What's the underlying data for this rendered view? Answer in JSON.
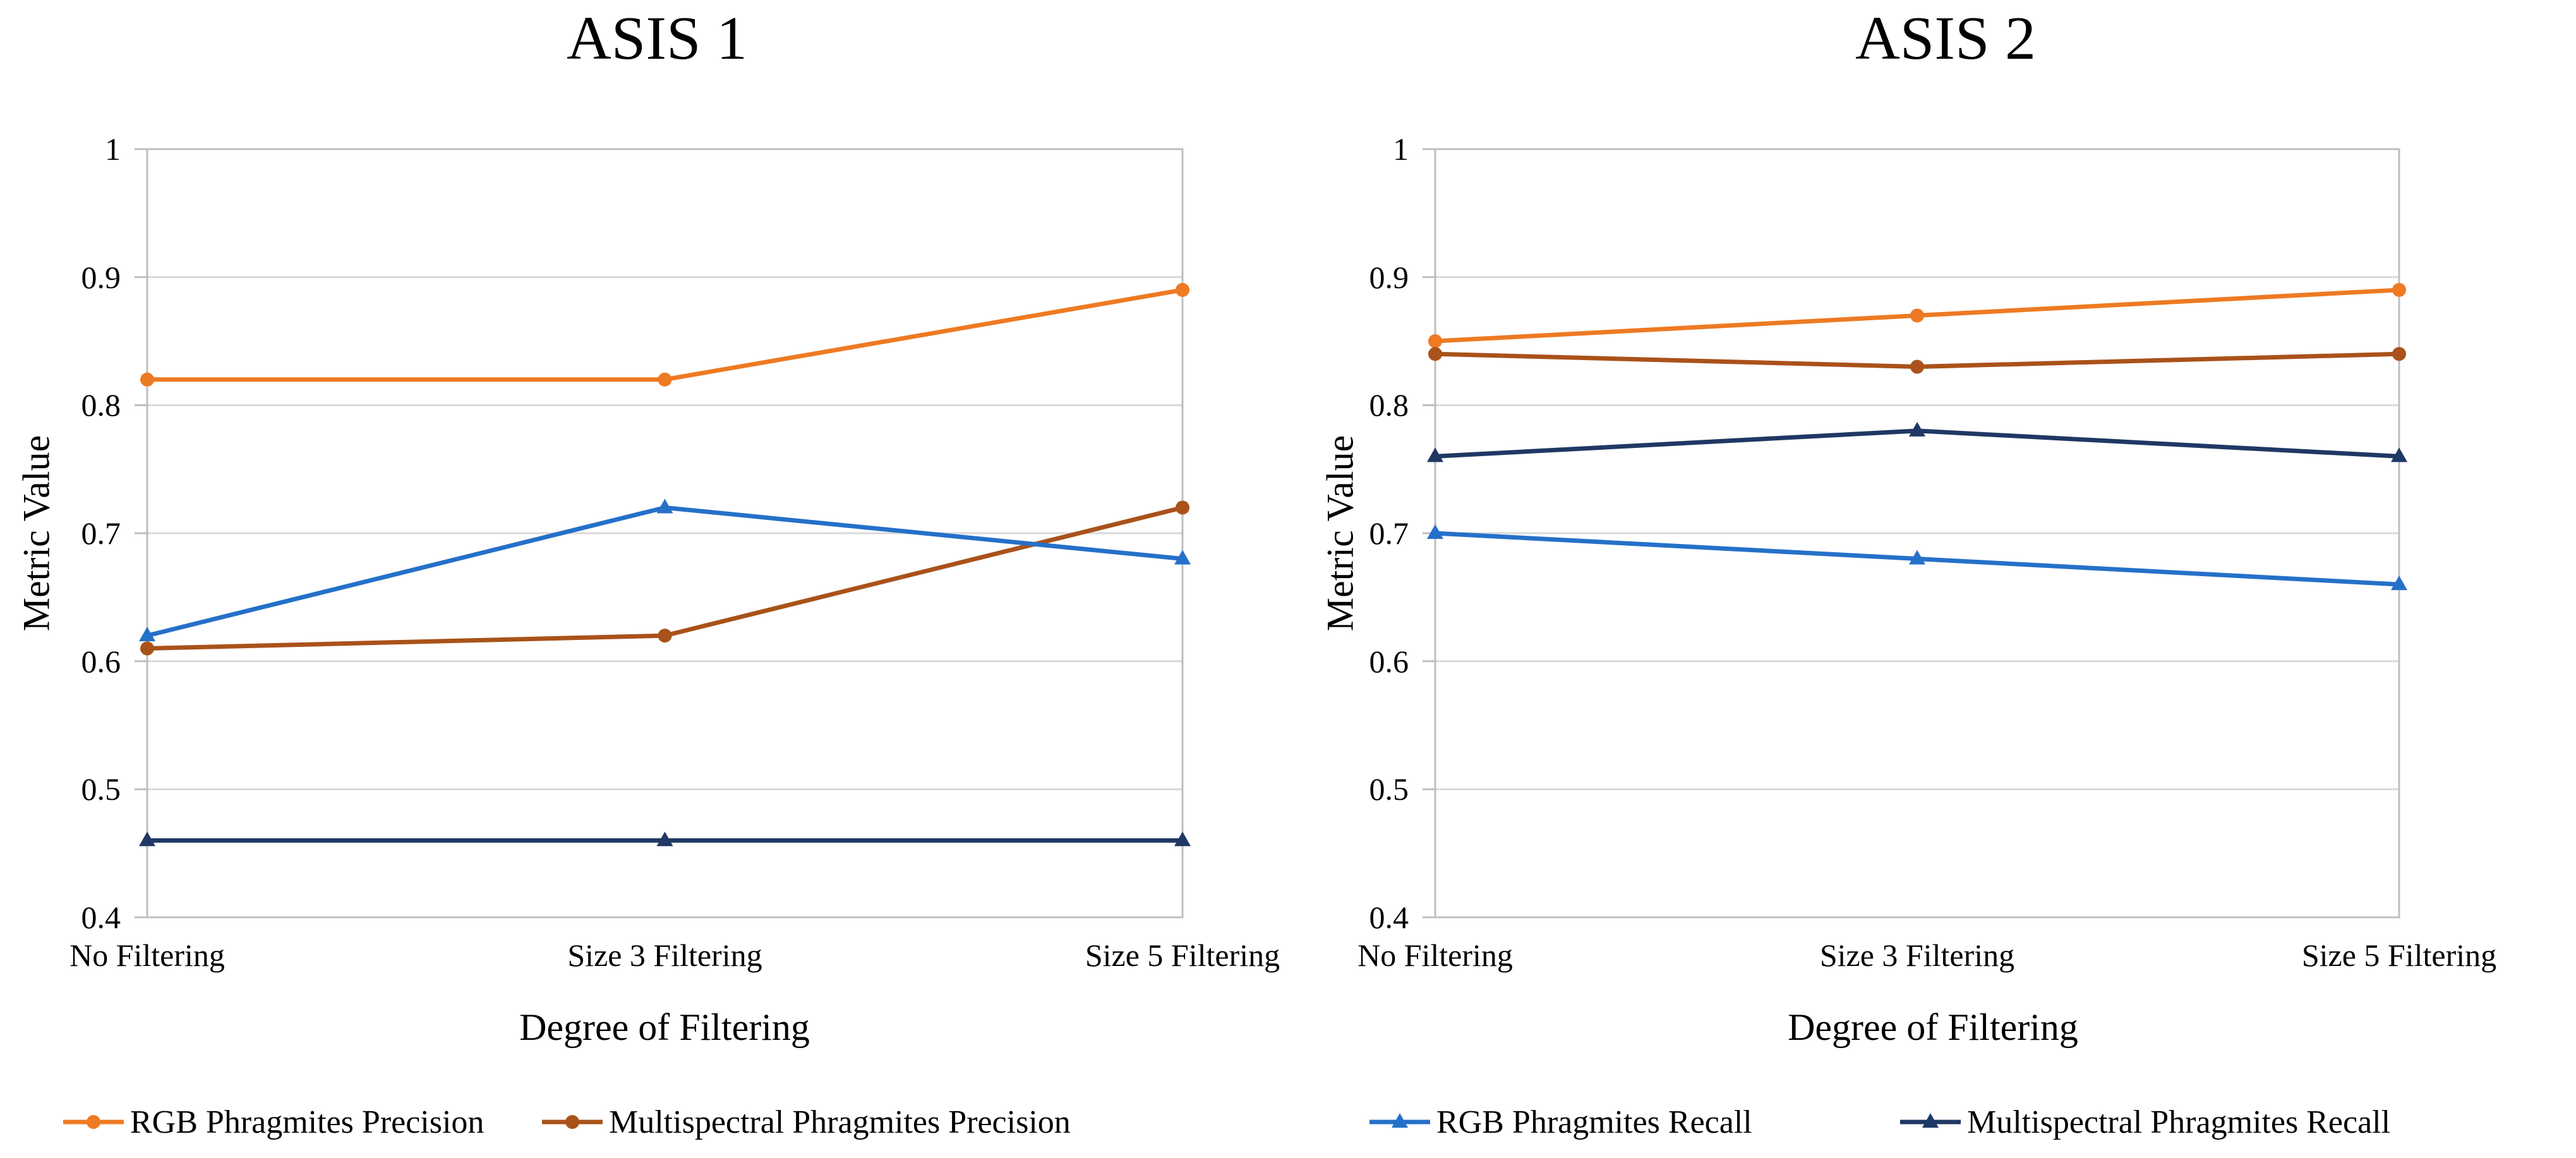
{
  "style": {
    "background": "#FFFFFF",
    "gridline_color": "#D9D9D9",
    "axis_color": "#BFBFBF",
    "text_color": "#000000"
  },
  "legend": {
    "items": [
      {
        "label": "RGB Phragmites Precision",
        "color": "#EE7A23",
        "marker": "circle"
      },
      {
        "label": "Multispectral Phragmites Precision",
        "color": "#A9521A",
        "marker": "circle"
      },
      {
        "label": "RGB Phragmites Recall",
        "color": "#2570C9",
        "marker": "triangle"
      },
      {
        "label": "Multispectral Phragmites Recall",
        "color": "#1F3864",
        "marker": "triangle"
      }
    ]
  },
  "chart_data": [
    {
      "type": "line",
      "title": "ASIS 1",
      "xlabel": "Degree of Filtering",
      "ylabel": "Metric Value",
      "categories": [
        "No Filtering",
        "Size 3 Filtering",
        "Size 5 Filtering"
      ],
      "ylim": [
        0.4,
        1
      ],
      "yticks": [
        1,
        0.9,
        0.8,
        0.7,
        0.6,
        0.5,
        0.4
      ],
      "ytick_labels": [
        "1",
        "0.9",
        "0.8",
        "0.7",
        "0.6",
        "0.5",
        "0.4"
      ],
      "grid": "horizontal",
      "legend_position": "bottom-shared",
      "series": [
        {
          "name": "RGB Phragmites Precision",
          "color": "#EE7A23",
          "marker": "circle",
          "values": [
            0.82,
            0.82,
            0.89
          ]
        },
        {
          "name": "Multispectral Phragmites Precision",
          "color": "#A9521A",
          "marker": "circle",
          "values": [
            0.61,
            0.62,
            0.72
          ]
        },
        {
          "name": "RGB Phragmites Recall",
          "color": "#2570C9",
          "marker": "triangle",
          "values": [
            0.62,
            0.72,
            0.68
          ]
        },
        {
          "name": "Multispectral Phragmites Recall",
          "color": "#1F3864",
          "marker": "triangle",
          "values": [
            0.46,
            0.46,
            0.46
          ]
        }
      ]
    },
    {
      "type": "line",
      "title": "ASIS 2",
      "xlabel": "Degree of Filtering",
      "ylabel": "Metric Value",
      "categories": [
        "No Filtering",
        "Size 3 Filtering",
        "Size 5 Filtering"
      ],
      "ylim": [
        0.4,
        1
      ],
      "yticks": [
        1,
        0.9,
        0.8,
        0.7,
        0.6,
        0.5,
        0.4
      ],
      "ytick_labels": [
        "1",
        "0.9",
        "0.8",
        "0.7",
        "0.6",
        "0.5",
        "0.4"
      ],
      "grid": "horizontal",
      "legend_position": "bottom-shared",
      "series": [
        {
          "name": "RGB Phragmites Precision",
          "color": "#EE7A23",
          "marker": "circle",
          "values": [
            0.85,
            0.87,
            0.89
          ]
        },
        {
          "name": "Multispectral Phragmites Precision",
          "color": "#A9521A",
          "marker": "circle",
          "values": [
            0.84,
            0.83,
            0.84
          ]
        },
        {
          "name": "RGB Phragmites Recall",
          "color": "#2570C9",
          "marker": "triangle",
          "values": [
            0.7,
            0.68,
            0.66
          ]
        },
        {
          "name": "Multispectral Phragmites Recall",
          "color": "#1F3864",
          "marker": "triangle",
          "values": [
            0.76,
            0.78,
            0.76
          ]
        }
      ]
    }
  ]
}
